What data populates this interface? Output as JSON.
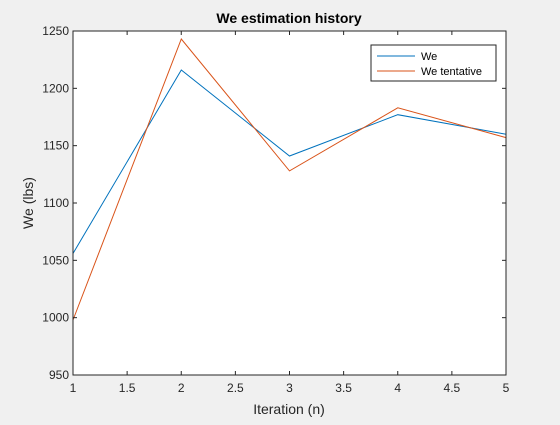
{
  "chart_data": {
    "type": "line",
    "title": "We estimation history",
    "xlabel": "Iteration (n)",
    "ylabel": "We (lbs)",
    "x": [
      1,
      2,
      3,
      4,
      5
    ],
    "xlim": [
      1,
      5
    ],
    "ylim": [
      950,
      1250
    ],
    "xticks": [
      1,
      1.5,
      2,
      2.5,
      3,
      3.5,
      4,
      4.5,
      5
    ],
    "xtick_labels": [
      "1",
      "1.5",
      "2",
      "2.5",
      "3",
      "3.5",
      "4",
      "4.5",
      "5"
    ],
    "yticks": [
      950,
      1000,
      1050,
      1100,
      1150,
      1200,
      1250
    ],
    "ytick_labels": [
      "950",
      "1000",
      "1050",
      "1100",
      "1150",
      "1200",
      "1250"
    ],
    "grid": false,
    "legend_position": "top-right",
    "series": [
      {
        "name": "We",
        "values": [
          1056,
          1216,
          1141,
          1177,
          1160
        ],
        "color": "#0072BD"
      },
      {
        "name": "We tentative",
        "values": [
          998,
          1243,
          1128,
          1183,
          1157
        ],
        "color": "#D95319"
      }
    ]
  }
}
